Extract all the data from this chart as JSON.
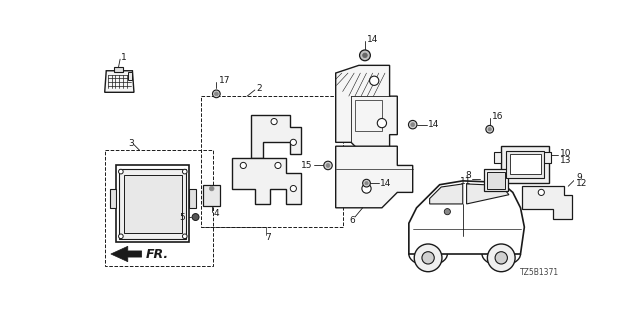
{
  "bg": "#ffffff",
  "lc": "#1a1a1a",
  "part_number": "TZ5B1371",
  "fig_w": 6.4,
  "fig_h": 3.2,
  "dpi": 100
}
